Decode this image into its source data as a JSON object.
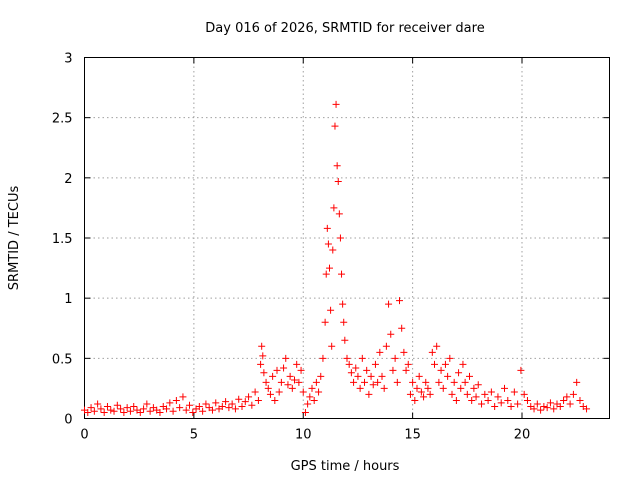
{
  "chart_data": {
    "type": "scatter",
    "title": "Day 016 of 2026, SRMTID for receiver dare",
    "xlabel": "GPS time / hours",
    "ylabel": "SRMTID / TECUs",
    "xlim": [
      0,
      24
    ],
    "ylim": [
      0,
      3
    ],
    "xticks": [
      0,
      5,
      10,
      15,
      20
    ],
    "xtick_labels": [
      "0",
      "5",
      "10",
      "15",
      "20"
    ],
    "yticks": [
      0,
      0.5,
      1,
      1.5,
      2,
      2.5,
      3
    ],
    "ytick_labels": [
      "0",
      "0.5",
      "1",
      "1.5",
      "2",
      "2.5",
      "3"
    ],
    "grid": true,
    "marker": "+",
    "series": [
      {
        "name": "SRMTID",
        "color": "#ff0000",
        "x": [
          0.0,
          0.15,
          0.3,
          0.45,
          0.6,
          0.75,
          0.9,
          1.05,
          1.2,
          1.35,
          1.5,
          1.65,
          1.8,
          1.95,
          2.1,
          2.25,
          2.4,
          2.55,
          2.7,
          2.85,
          3.0,
          3.15,
          3.3,
          3.45,
          3.6,
          3.75,
          3.9,
          4.05,
          4.2,
          4.35,
          4.5,
          4.65,
          4.8,
          4.95,
          5.1,
          5.25,
          5.4,
          5.55,
          5.7,
          5.85,
          6.0,
          6.15,
          6.3,
          6.45,
          6.6,
          6.75,
          6.9,
          7.05,
          7.2,
          7.35,
          7.5,
          7.65,
          7.8,
          7.95,
          8.05,
          8.1,
          8.15,
          8.2,
          8.3,
          8.4,
          8.5,
          8.6,
          8.7,
          8.8,
          8.9,
          9.0,
          9.1,
          9.2,
          9.3,
          9.4,
          9.5,
          9.6,
          9.7,
          9.8,
          9.9,
          10.0,
          10.1,
          10.2,
          10.3,
          10.4,
          10.5,
          10.6,
          10.7,
          10.8,
          10.9,
          11.0,
          11.05,
          11.1,
          11.15,
          11.2,
          11.25,
          11.3,
          11.35,
          11.4,
          11.45,
          11.5,
          11.55,
          11.6,
          11.65,
          11.7,
          11.75,
          11.8,
          11.85,
          11.9,
          12.0,
          12.1,
          12.2,
          12.3,
          12.4,
          12.5,
          12.6,
          12.7,
          12.8,
          12.9,
          13.0,
          13.1,
          13.2,
          13.3,
          13.4,
          13.5,
          13.6,
          13.7,
          13.8,
          13.9,
          14.0,
          14.1,
          14.2,
          14.3,
          14.4,
          14.5,
          14.6,
          14.7,
          14.8,
          14.9,
          15.0,
          15.1,
          15.2,
          15.3,
          15.4,
          15.5,
          15.6,
          15.7,
          15.8,
          15.9,
          16.0,
          16.1,
          16.2,
          16.3,
          16.4,
          16.5,
          16.6,
          16.7,
          16.8,
          16.9,
          17.0,
          17.1,
          17.2,
          17.3,
          17.4,
          17.5,
          17.6,
          17.7,
          17.8,
          17.9,
          18.0,
          18.15,
          18.3,
          18.45,
          18.6,
          18.75,
          18.9,
          19.05,
          19.2,
          19.35,
          19.5,
          19.65,
          19.8,
          19.95,
          20.1,
          20.25,
          20.4,
          20.55,
          20.7,
          20.85,
          21.0,
          21.15,
          21.3,
          21.45,
          21.6,
          21.75,
          21.9,
          22.05,
          22.2,
          22.35,
          22.5,
          22.65,
          22.8,
          22.95
        ],
        "y": [
          0.07,
          0.05,
          0.09,
          0.06,
          0.12,
          0.08,
          0.05,
          0.1,
          0.07,
          0.06,
          0.11,
          0.08,
          0.05,
          0.09,
          0.06,
          0.1,
          0.07,
          0.05,
          0.08,
          0.12,
          0.06,
          0.09,
          0.07,
          0.05,
          0.1,
          0.08,
          0.13,
          0.06,
          0.15,
          0.09,
          0.18,
          0.07,
          0.11,
          0.05,
          0.08,
          0.1,
          0.06,
          0.12,
          0.09,
          0.07,
          0.13,
          0.08,
          0.1,
          0.14,
          0.09,
          0.12,
          0.08,
          0.16,
          0.1,
          0.14,
          0.18,
          0.11,
          0.22,
          0.15,
          0.45,
          0.6,
          0.52,
          0.38,
          0.3,
          0.25,
          0.2,
          0.35,
          0.15,
          0.4,
          0.22,
          0.3,
          0.42,
          0.5,
          0.28,
          0.35,
          0.25,
          0.32,
          0.45,
          0.3,
          0.4,
          0.22,
          0.05,
          0.12,
          0.18,
          0.25,
          0.15,
          0.3,
          0.22,
          0.35,
          0.5,
          0.8,
          1.2,
          1.58,
          1.45,
          1.25,
          0.9,
          0.6,
          1.4,
          1.75,
          2.43,
          2.61,
          2.1,
          1.97,
          1.7,
          1.5,
          1.2,
          0.95,
          0.8,
          0.65,
          0.5,
          0.45,
          0.38,
          0.3,
          0.42,
          0.35,
          0.25,
          0.5,
          0.3,
          0.4,
          0.2,
          0.35,
          0.28,
          0.45,
          0.3,
          0.55,
          0.35,
          0.25,
          0.6,
          0.95,
          0.7,
          0.4,
          0.5,
          0.3,
          0.98,
          0.75,
          0.55,
          0.4,
          0.45,
          0.2,
          0.3,
          0.15,
          0.25,
          0.35,
          0.22,
          0.18,
          0.3,
          0.25,
          0.2,
          0.55,
          0.45,
          0.6,
          0.3,
          0.4,
          0.25,
          0.45,
          0.35,
          0.5,
          0.2,
          0.3,
          0.15,
          0.38,
          0.25,
          0.45,
          0.3,
          0.2,
          0.35,
          0.15,
          0.25,
          0.18,
          0.28,
          0.12,
          0.2,
          0.15,
          0.22,
          0.1,
          0.18,
          0.13,
          0.25,
          0.15,
          0.1,
          0.22,
          0.12,
          0.4,
          0.2,
          0.15,
          0.1,
          0.08,
          0.12,
          0.07,
          0.1,
          0.09,
          0.13,
          0.08,
          0.12,
          0.1,
          0.15,
          0.18,
          0.12,
          0.2,
          0.3,
          0.15,
          0.1,
          0.08
        ]
      }
    ]
  }
}
